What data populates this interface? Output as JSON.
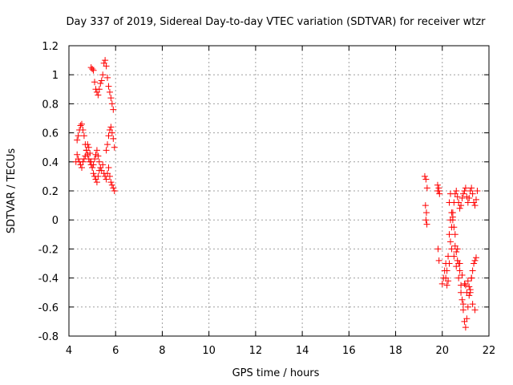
{
  "chart_data": {
    "type": "scatter",
    "title": "Day 337 of 2019, Sidereal Day-to-day VTEC variation (SDTVAR) for receiver wtzr",
    "xlabel": "GPS time / hours",
    "ylabel": "SDTVAR / TECUs",
    "xlim": [
      4,
      22
    ],
    "ylim": [
      -0.8,
      1.2
    ],
    "xticks": [
      "4",
      "6",
      "8",
      "10",
      "12",
      "14",
      "16",
      "18",
      "20",
      "22"
    ],
    "yticks": [
      "1.2",
      "1",
      "0.8",
      "0.6",
      "0.4",
      "0.2",
      "0",
      "-0.2",
      "-0.4",
      "-0.6",
      "-0.8"
    ],
    "grid": true,
    "marker": "+",
    "color": "#ff0000",
    "series": [
      {
        "name": "SDTVAR",
        "x": [
          4.3,
          4.35,
          4.4,
          4.45,
          4.5,
          4.55,
          4.6,
          4.65,
          4.7,
          4.75,
          4.8,
          4.85,
          4.9,
          4.95,
          5.0,
          5.05,
          5.1,
          5.15,
          5.2,
          5.25,
          5.3,
          5.35,
          5.4,
          5.45,
          5.5,
          5.55,
          5.6,
          5.65,
          5.7,
          5.75,
          5.8,
          5.85,
          5.9,
          5.95,
          4.35,
          4.4,
          4.45,
          4.5,
          4.55,
          4.6,
          4.65,
          4.7,
          4.75,
          4.8,
          4.85,
          4.9,
          4.95,
          5.0,
          5.05,
          5.1,
          5.15,
          5.2,
          5.25,
          5.3,
          4.95,
          5.0,
          5.05,
          5.1,
          5.15,
          5.2,
          5.25,
          5.3,
          5.35,
          5.4,
          5.45,
          5.5,
          5.55,
          5.6,
          5.65,
          5.7,
          5.75,
          5.8,
          5.85,
          5.9,
          5.6,
          5.65,
          5.7,
          5.75,
          5.8,
          5.85,
          5.9,
          5.95,
          19.25,
          19.3,
          19.35,
          19.28,
          19.32,
          19.3,
          19.34,
          19.8,
          19.85,
          19.88,
          19.82,
          19.86,
          20.2,
          20.25,
          20.3,
          20.35,
          20.4,
          20.45,
          20.5,
          20.55,
          20.6,
          20.65,
          20.7,
          20.75,
          20.8,
          20.85,
          20.9,
          20.95,
          21.0,
          21.05,
          21.1,
          21.15,
          21.2,
          21.25,
          21.3,
          21.35,
          21.4,
          21.45,
          21.5,
          20.15,
          20.2,
          20.25,
          20.3,
          20.35,
          20.4,
          20.45,
          20.5,
          20.55,
          20.6,
          20.65,
          20.7,
          20.75,
          20.8,
          20.85,
          20.9,
          20.95,
          21.0,
          21.05,
          21.1,
          21.15,
          21.2,
          21.25,
          21.3,
          21.35,
          21.4,
          21.45,
          20.4,
          20.5,
          20.6,
          20.7,
          20.8,
          20.9,
          21.0,
          21.1,
          21.2,
          21.3,
          21.4,
          20.45,
          20.55,
          20.65,
          20.75,
          20.85,
          20.95,
          21.05,
          21.15,
          21.25,
          19.8,
          19.85,
          20.0,
          20.05,
          20.1,
          20.15,
          20.3,
          20.35
        ],
        "y": [
          0.4,
          0.55,
          0.58,
          0.62,
          0.65,
          0.66,
          0.62,
          0.58,
          0.52,
          0.48,
          0.45,
          0.42,
          0.4,
          0.38,
          0.36,
          0.38,
          0.42,
          0.45,
          0.48,
          0.44,
          0.4,
          0.36,
          0.34,
          0.38,
          0.32,
          0.3,
          0.28,
          0.32,
          0.36,
          0.3,
          0.26,
          0.24,
          0.22,
          0.2,
          0.45,
          0.42,
          0.4,
          0.38,
          0.36,
          0.4,
          0.42,
          0.44,
          0.48,
          0.52,
          0.5,
          0.46,
          0.4,
          0.36,
          0.32,
          0.3,
          0.28,
          0.26,
          0.3,
          0.34,
          1.05,
          1.04,
          1.03,
          0.95,
          0.9,
          0.88,
          0.86,
          0.9,
          0.94,
          0.96,
          1.0,
          1.08,
          1.1,
          1.06,
          0.98,
          0.92,
          0.88,
          0.84,
          0.8,
          0.76,
          0.48,
          0.52,
          0.58,
          0.62,
          0.64,
          0.6,
          0.56,
          0.5,
          0.3,
          0.28,
          0.22,
          0.1,
          0.05,
          0.0,
          -0.03,
          0.2,
          0.22,
          0.18,
          -0.2,
          -0.28,
          -0.45,
          -0.42,
          -0.3,
          -0.15,
          -0.05,
          0.05,
          0.12,
          0.18,
          0.2,
          0.16,
          0.12,
          0.08,
          0.1,
          0.15,
          0.18,
          0.2,
          0.22,
          0.16,
          0.12,
          0.15,
          0.2,
          0.22,
          0.18,
          0.12,
          0.1,
          0.14,
          0.2,
          -0.4,
          -0.35,
          -0.25,
          -0.1,
          0.0,
          0.05,
          0.02,
          -0.05,
          -0.18,
          -0.22,
          -0.28,
          -0.3,
          -0.35,
          -0.45,
          -0.55,
          -0.62,
          -0.7,
          -0.74,
          -0.68,
          -0.6,
          -0.52,
          -0.48,
          -0.4,
          -0.35,
          -0.3,
          -0.28,
          -0.26,
          -0.2,
          -0.25,
          -0.32,
          -0.4,
          -0.5,
          -0.58,
          -0.45,
          -0.42,
          -0.5,
          -0.58,
          -0.62,
          0.0,
          -0.1,
          -0.2,
          -0.3,
          -0.38,
          -0.44,
          -0.5,
          -0.46,
          -0.4,
          0.24,
          0.2,
          -0.44,
          -0.4,
          -0.35,
          -0.3,
          0.12,
          0.18
        ]
      }
    ]
  }
}
